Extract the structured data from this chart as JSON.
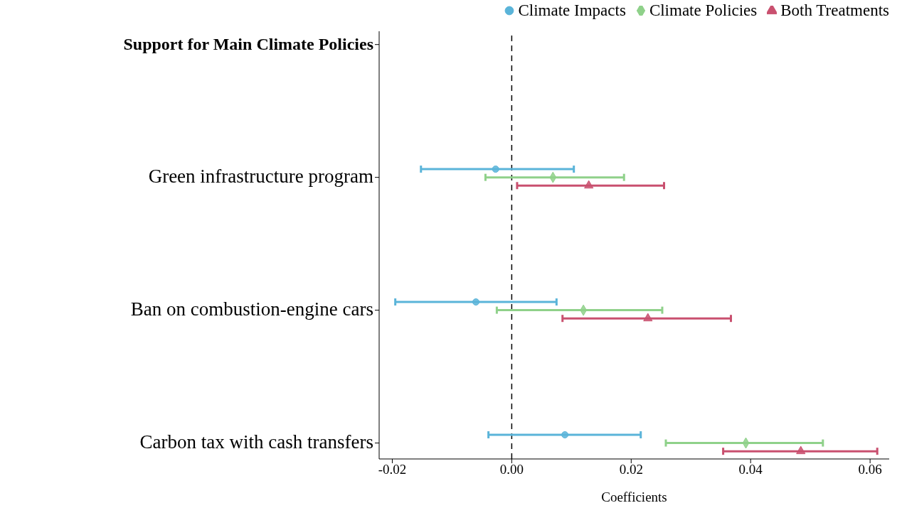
{
  "chart_data": {
    "type": "scatter",
    "xlabel": "Coefficients",
    "categories": [
      "Support for Main Climate Policies",
      "Green infrastructure program",
      "Ban on combustion-engine cars",
      "Carbon tax with cash transfers"
    ],
    "series": [
      {
        "name": "Climate Impacts",
        "color": "#5ab4d9",
        "marker": "circle",
        "values": [
          null,
          -0.0027,
          -0.006,
          0.0089
        ],
        "errors": [
          null,
          [
            -0.0152,
            0.0104
          ],
          [
            -0.0195,
            0.0075
          ],
          [
            -0.0039,
            0.0216
          ]
        ]
      },
      {
        "name": "Climate Policies",
        "color": "#8fd18a",
        "marker": "diamond",
        "values": [
          null,
          0.0069,
          0.012,
          0.0392
        ],
        "errors": [
          null,
          [
            -0.0044,
            0.0188
          ],
          [
            -0.0025,
            0.0252
          ],
          [
            0.0258,
            0.0521
          ]
        ]
      },
      {
        "name": "Both Treatments",
        "color": "#c9506f",
        "marker": "triangle",
        "values": [
          null,
          0.0129,
          0.0228,
          0.0484
        ],
        "errors": [
          null,
          [
            0.0009,
            0.0255
          ],
          [
            0.0085,
            0.0367
          ],
          [
            0.0354,
            0.0612
          ]
        ]
      }
    ],
    "xlim": [
      -0.0222,
      0.0632
    ],
    "xticks": [
      {
        "value": -0.02,
        "label": "-0.02"
      },
      {
        "value": 0,
        "label": "0.00"
      },
      {
        "value": 0.02,
        "label": "0.02"
      },
      {
        "value": 0.04,
        "label": "0.04"
      },
      {
        "value": 0.06,
        "label": "0.06"
      }
    ],
    "ref_lines": [
      {
        "axis": "x",
        "value": 0,
        "line_style": "dashed",
        "color": "#000000"
      }
    ],
    "grid": false,
    "legend": "top right",
    "orientation": "horizontal"
  }
}
